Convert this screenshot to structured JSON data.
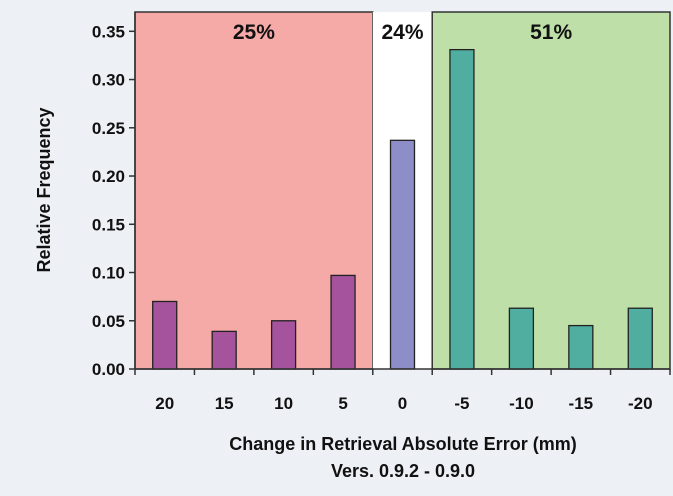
{
  "chart_data": {
    "type": "bar",
    "categories": [
      "20",
      "15",
      "10",
      "5",
      "0",
      "-5",
      "-10",
      "-15",
      "-20"
    ],
    "values": [
      0.07,
      0.039,
      0.05,
      0.097,
      0.237,
      0.331,
      0.063,
      0.045,
      0.063
    ],
    "bar_colors": [
      "#a4539c",
      "#a4539c",
      "#a4539c",
      "#a4539c",
      "#8d8ec8",
      "#4fae9f",
      "#4fae9f",
      "#4fae9f",
      "#4fae9f"
    ],
    "ylabel": "Relative Frequency",
    "xlabel": "Change in Retrieval Absolute Error (mm)",
    "subtitle": "Vers. 0.9.2 - 0.9.0",
    "ylim": [
      0,
      0.37
    ],
    "yticks": [
      "0.00",
      "0.05",
      "0.10",
      "0.15",
      "0.20",
      "0.25",
      "0.30",
      "0.35"
    ],
    "regions": [
      {
        "label": "25%",
        "from_category": 0,
        "to_category": 3,
        "color": "#f5aaa7"
      },
      {
        "label": "24%",
        "from_category": 4,
        "to_category": 4,
        "color": "#ffffff"
      },
      {
        "label": "51%",
        "from_category": 5,
        "to_category": 8,
        "color": "#bfdfa9"
      }
    ],
    "grid": false,
    "legend": "none"
  }
}
